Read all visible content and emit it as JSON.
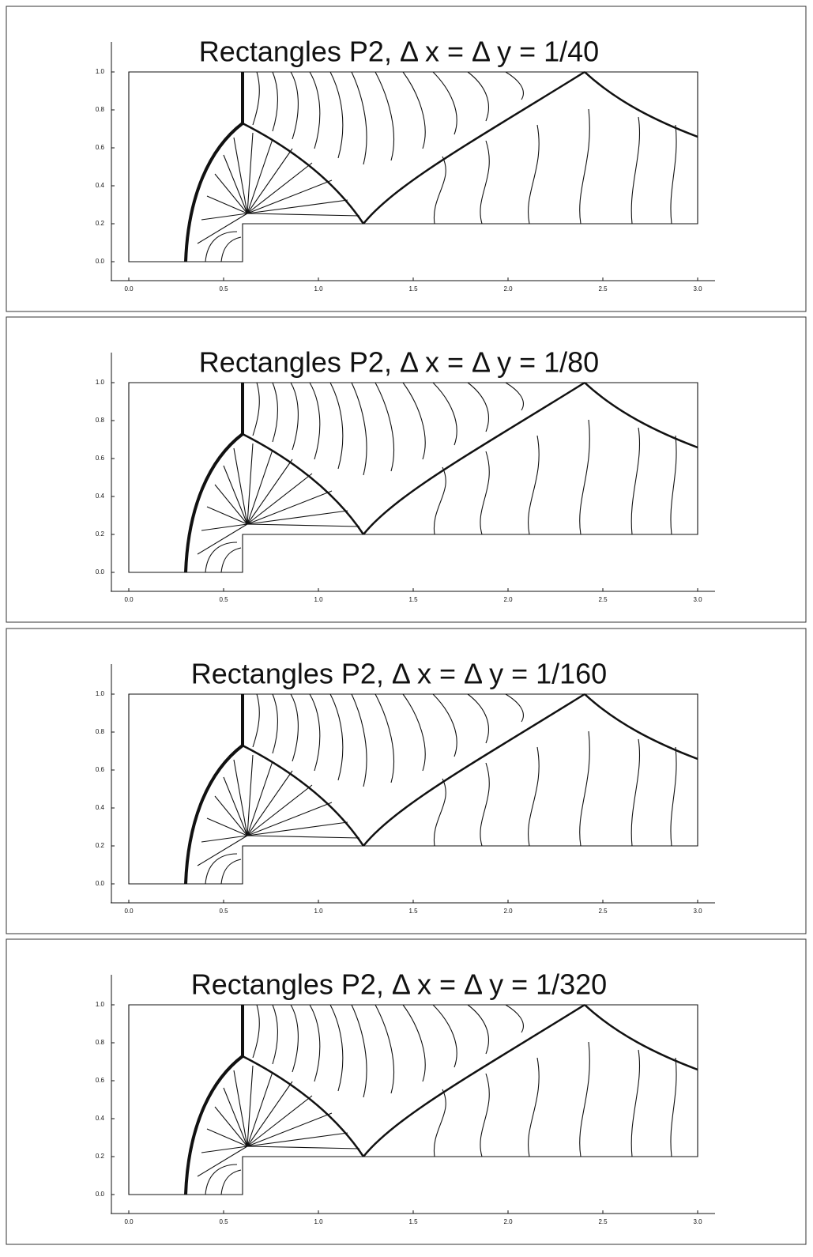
{
  "chart_data": [
    {
      "type": "contour",
      "title": "Rectangles P2, Δ x = Δ y = 1/40",
      "xlim": [
        0,
        3
      ],
      "ylim": [
        0,
        1
      ],
      "xticks": [
        {
          "value": 0,
          "label": "0.0"
        },
        {
          "value": 0.5,
          "label": "0.5"
        },
        {
          "value": 1,
          "label": "1.0"
        },
        {
          "value": 1.5,
          "label": "1.5"
        },
        {
          "value": 2,
          "label": "2.0"
        },
        {
          "value": 2.5,
          "label": "2.5"
        },
        {
          "value": 3,
          "label": "3.0"
        }
      ],
      "yticks": [
        {
          "value": 0,
          "label": "0.0"
        },
        0.2,
        0.4,
        0.6,
        0.8,
        {
          "value": 1,
          "label": "1.0"
        }
      ]
    },
    {
      "type": "contour",
      "title": "Rectangles P2, Δ x = Δ y = 1/80",
      "xlim": [
        0,
        3
      ],
      "ylim": [
        0,
        1
      ],
      "xticks": [
        {
          "value": 0,
          "label": "0.0"
        },
        {
          "value": 0.5,
          "label": "0.5"
        },
        {
          "value": 1,
          "label": "1.0"
        },
        {
          "value": 1.5,
          "label": "1.5"
        },
        {
          "value": 2,
          "label": "2.0"
        },
        {
          "value": 2.5,
          "label": "2.5"
        },
        {
          "value": 3,
          "label": "3.0"
        }
      ],
      "yticks": [
        {
          "value": 0,
          "label": "0.0"
        },
        0.2,
        0.4,
        0.6,
        0.8,
        {
          "value": 1,
          "label": "1.0"
        }
      ]
    },
    {
      "type": "contour",
      "title": "Rectangles P2, Δ x = Δ y = 1/160",
      "xlim": [
        0,
        3
      ],
      "ylim": [
        0,
        1
      ],
      "xticks": [
        {
          "value": 0,
          "label": "0.0"
        },
        {
          "value": 0.5,
          "label": "0.5"
        },
        {
          "value": 1,
          "label": "1.0"
        },
        {
          "value": 1.5,
          "label": "1.5"
        },
        {
          "value": 2,
          "label": "2.0"
        },
        {
          "value": 2.5,
          "label": "2.5"
        },
        {
          "value": 3,
          "label": "3.0"
        }
      ],
      "yticks": [
        {
          "value": 0,
          "label": "0.0"
        },
        0.2,
        0.4,
        0.6,
        0.8,
        {
          "value": 1,
          "label": "1.0"
        }
      ]
    },
    {
      "type": "contour",
      "title": "Rectangles P2, Δ x = Δ y = 1/320",
      "xlim": [
        0,
        3
      ],
      "ylim": [
        0,
        1
      ],
      "xticks": [
        {
          "value": 0,
          "label": "0.0"
        },
        {
          "value": 0.5,
          "label": "0.5"
        },
        {
          "value": 1,
          "label": "1.0"
        },
        {
          "value": 1.5,
          "label": "1.5"
        },
        {
          "value": 2,
          "label": "2.0"
        },
        {
          "value": 2.5,
          "label": "2.5"
        },
        {
          "value": 3,
          "label": "3.0"
        }
      ],
      "yticks": [
        {
          "value": 0,
          "label": "0.0"
        },
        0.2,
        0.4,
        0.6,
        0.8,
        {
          "value": 1,
          "label": "1.0"
        }
      ]
    }
  ]
}
